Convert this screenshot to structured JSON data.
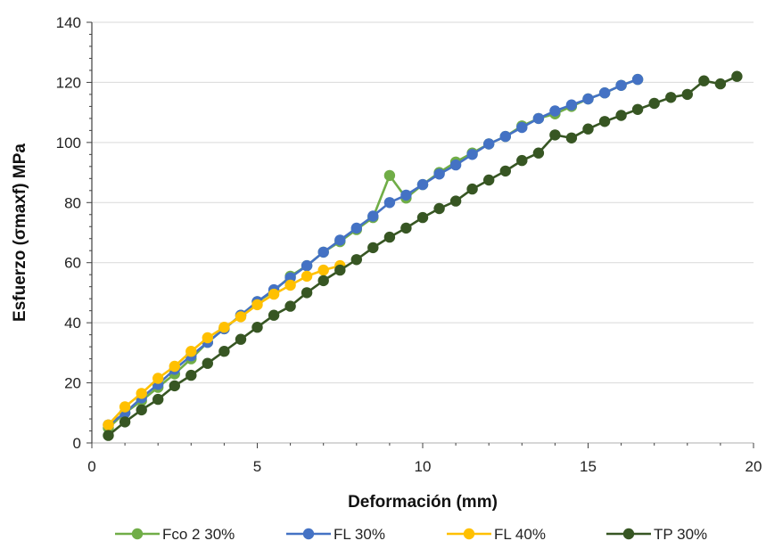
{
  "chart_data": {
    "type": "line",
    "xlabel": "Deformación (mm)",
    "ylabel": "Esfuerzo (σmaxf) MPa",
    "xlim": [
      0,
      20
    ],
    "ylim": [
      0,
      140
    ],
    "x_ticks": [
      0,
      5,
      10,
      15,
      20
    ],
    "y_ticks": [
      0,
      20,
      40,
      60,
      80,
      100,
      120,
      140
    ],
    "grid": "horizontal",
    "legend_position": "bottom",
    "series": [
      {
        "name": "Fco 2 30%",
        "color": "#70ad47",
        "points": [
          [
            0.5,
            5
          ],
          [
            1,
            10
          ],
          [
            1.5,
            14
          ],
          [
            2,
            18.5
          ],
          [
            2.5,
            23
          ],
          [
            3,
            28
          ],
          [
            3.5,
            33.5
          ],
          [
            4,
            38
          ],
          [
            4.5,
            42.5
          ],
          [
            5,
            47
          ],
          [
            5.5,
            50.5
          ],
          [
            6,
            55.5
          ],
          [
            6.5,
            59
          ],
          [
            7,
            63.5
          ],
          [
            7.5,
            67
          ],
          [
            8,
            71
          ],
          [
            8.5,
            75
          ],
          [
            9,
            89
          ],
          [
            9.5,
            81.5
          ],
          [
            10,
            86
          ],
          [
            10.5,
            90
          ],
          [
            11,
            93.5
          ],
          [
            11.5,
            96.5
          ],
          [
            12,
            99.5
          ],
          [
            12.5,
            102
          ],
          [
            13,
            105.5
          ],
          [
            13.5,
            108
          ],
          [
            14,
            109.5
          ],
          [
            14.5,
            112
          ],
          [
            15,
            114.5
          ],
          [
            15.5,
            116.5
          ],
          [
            16,
            119
          ],
          [
            16.5,
            121
          ]
        ]
      },
      {
        "name": "FL 30%",
        "color": "#4472c4",
        "points": [
          [
            0.5,
            6
          ],
          [
            1,
            10
          ],
          [
            1.5,
            15
          ],
          [
            2,
            19.5
          ],
          [
            2.5,
            24.5
          ],
          [
            3,
            29
          ],
          [
            3.5,
            33.5
          ],
          [
            4,
            38
          ],
          [
            4.5,
            42.5
          ],
          [
            5,
            47
          ],
          [
            5.5,
            51
          ],
          [
            6,
            55
          ],
          [
            6.5,
            59
          ],
          [
            7,
            63.5
          ],
          [
            7.5,
            67.5
          ],
          [
            8,
            71.5
          ],
          [
            8.5,
            75.5
          ],
          [
            9,
            80
          ],
          [
            9.5,
            82.5
          ],
          [
            10,
            86
          ],
          [
            10.5,
            89.5
          ],
          [
            11,
            92.5
          ],
          [
            11.5,
            96
          ],
          [
            12,
            99.5
          ],
          [
            12.5,
            102
          ],
          [
            13,
            105
          ],
          [
            13.5,
            108
          ],
          [
            14,
            110.5
          ],
          [
            14.5,
            112.5
          ],
          [
            15,
            114.5
          ],
          [
            15.5,
            116.5
          ],
          [
            16,
            119
          ],
          [
            16.5,
            121
          ]
        ]
      },
      {
        "name": "FL 40%",
        "color": "#ffc000",
        "points": [
          [
            0.5,
            6
          ],
          [
            1,
            12
          ],
          [
            1.5,
            16.5
          ],
          [
            2,
            21.5
          ],
          [
            2.5,
            25.5
          ],
          [
            3,
            30.5
          ],
          [
            3.5,
            35
          ],
          [
            4,
            38.5
          ],
          [
            4.5,
            42
          ],
          [
            5,
            46
          ],
          [
            5.5,
            49.5
          ],
          [
            6,
            52.5
          ],
          [
            6.5,
            55.5
          ],
          [
            7,
            57.5
          ],
          [
            7.5,
            59
          ]
        ]
      },
      {
        "name": "TP 30%",
        "color": "#375623",
        "points": [
          [
            0.5,
            2.5
          ],
          [
            1,
            7
          ],
          [
            1.5,
            11
          ],
          [
            2,
            14.5
          ],
          [
            2.5,
            19
          ],
          [
            3,
            22.5
          ],
          [
            3.5,
            26.5
          ],
          [
            4,
            30.5
          ],
          [
            4.5,
            34.5
          ],
          [
            5,
            38.5
          ],
          [
            5.5,
            42.5
          ],
          [
            6,
            45.5
          ],
          [
            6.5,
            50
          ],
          [
            7,
            54
          ],
          [
            7.5,
            57.5
          ],
          [
            8,
            61
          ],
          [
            8.5,
            65
          ],
          [
            9,
            68.5
          ],
          [
            9.5,
            71.5
          ],
          [
            10,
            75
          ],
          [
            10.5,
            78
          ],
          [
            11,
            80.5
          ],
          [
            11.5,
            84.5
          ],
          [
            12,
            87.5
          ],
          [
            12.5,
            90.5
          ],
          [
            13,
            94
          ],
          [
            13.5,
            96.5
          ],
          [
            14,
            102.5
          ],
          [
            14.5,
            101.5
          ],
          [
            15,
            104.5
          ],
          [
            15.5,
            107
          ],
          [
            16,
            109
          ],
          [
            16.5,
            111
          ],
          [
            17,
            113
          ],
          [
            17.5,
            115
          ],
          [
            18,
            116
          ],
          [
            18.5,
            120.5
          ],
          [
            19,
            119.5
          ],
          [
            19.5,
            122
          ]
        ]
      }
    ]
  }
}
